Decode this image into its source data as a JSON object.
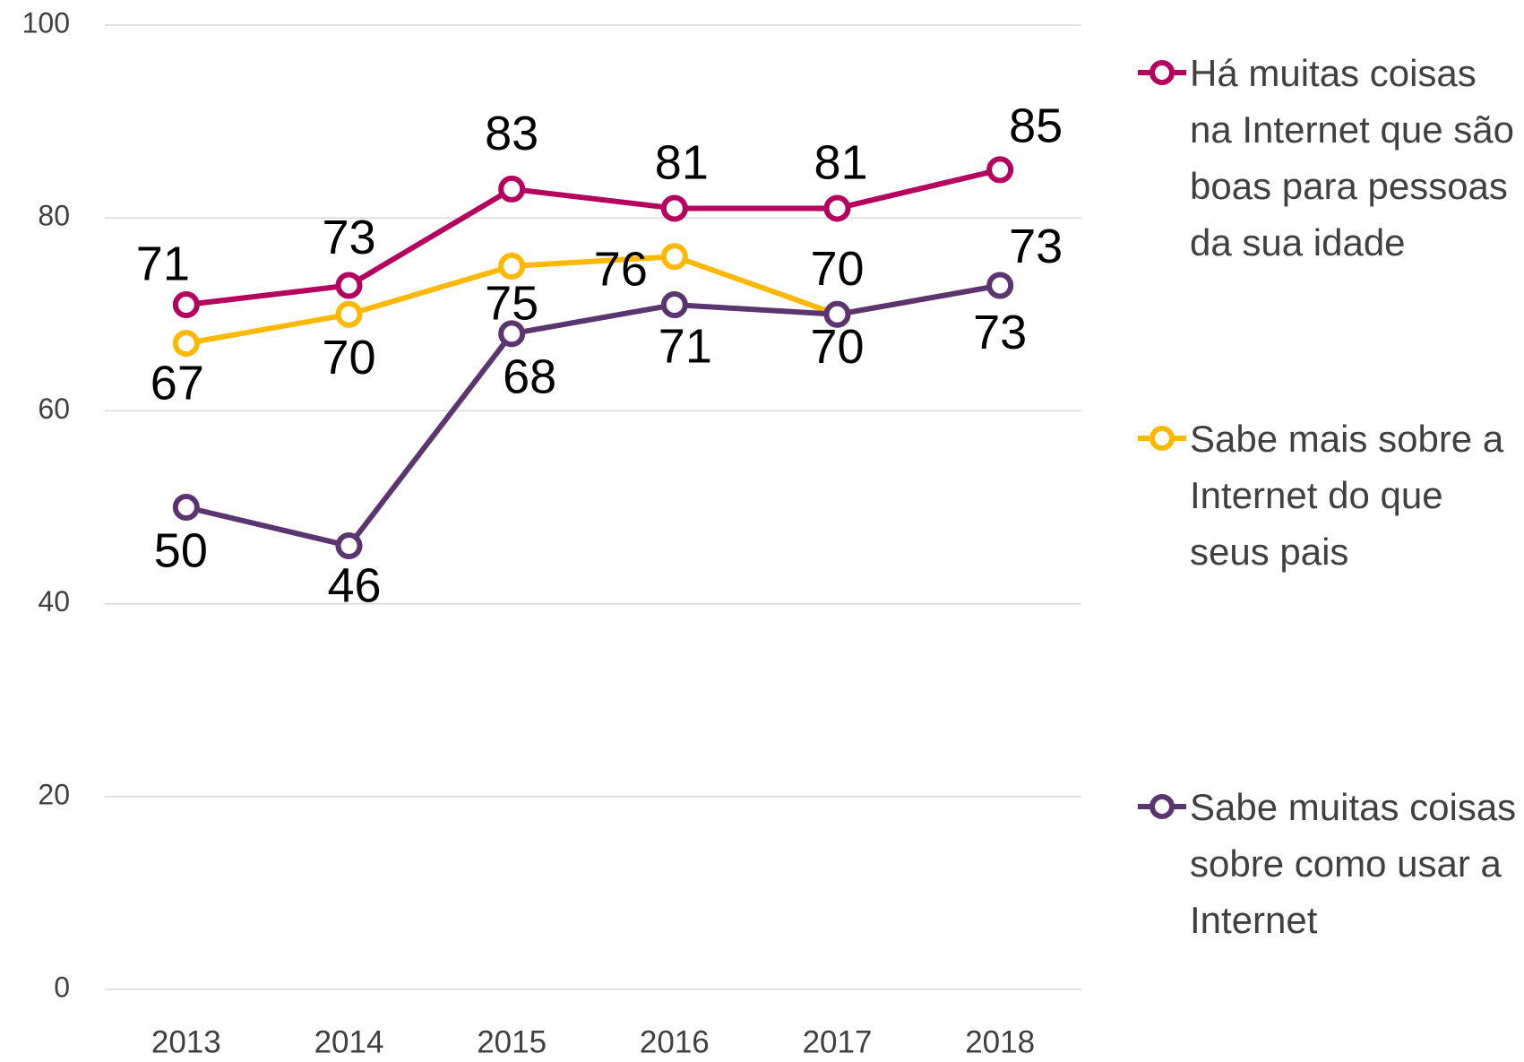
{
  "chart_data": {
    "type": "line",
    "categories": [
      "2013",
      "2014",
      "2015",
      "2016",
      "2017",
      "2018"
    ],
    "series": [
      {
        "name": "Há muitas coisas na Internet que são boas para pessoas da sua idade",
        "color": "#b5005f",
        "values": [
          71,
          73,
          83,
          81,
          81,
          85
        ]
      },
      {
        "name": "Sabe mais sobre a Internet do que seus pais",
        "color": "#ffb800",
        "values": [
          67,
          70,
          75,
          76,
          70,
          73
        ]
      },
      {
        "name": "Sabe muitas coisas sobre como usar a Internet",
        "color": "#5b3470",
        "values": [
          50,
          46,
          68,
          71,
          70,
          73
        ]
      }
    ],
    "ylim": [
      0,
      100
    ],
    "yticks": [
      0,
      20,
      40,
      60,
      80,
      100
    ],
    "grid": true,
    "legend": "right"
  }
}
